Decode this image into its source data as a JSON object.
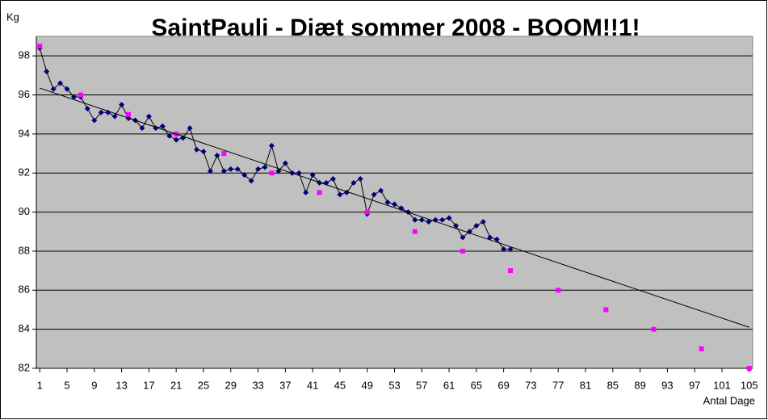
{
  "chart_data": {
    "type": "scatter-line",
    "title": "SaintPauli - Diæt sommer 2008 - BOOM!!1!",
    "y_label": "Kg",
    "x_label": "Antal Dage",
    "xlim": [
      0.5,
      105.5
    ],
    "xticks": [
      1,
      5,
      9,
      13,
      17,
      21,
      25,
      29,
      33,
      37,
      41,
      45,
      49,
      53,
      57,
      61,
      65,
      69,
      73,
      77,
      81,
      85,
      89,
      93,
      97,
      101,
      105
    ],
    "ylim": [
      82,
      99
    ],
    "yticks": [
      82,
      84,
      86,
      88,
      90,
      92,
      94,
      96,
      98
    ],
    "grid": true,
    "series": [
      {
        "color": "#000080",
        "line_color": "#000000",
        "marker": "diamond",
        "x": [
          1,
          2,
          3,
          4,
          5,
          6,
          7,
          8,
          9,
          10,
          11,
          12,
          13,
          14,
          15,
          16,
          17,
          18,
          19,
          20,
          21,
          22,
          23,
          24,
          25,
          26,
          27,
          28,
          29,
          30,
          31,
          32,
          33,
          34,
          35,
          36,
          37,
          38,
          39,
          40,
          41,
          42,
          43,
          44,
          45,
          46,
          47,
          48,
          49,
          50,
          51,
          52,
          53,
          54,
          55,
          56,
          57,
          58,
          59,
          60,
          61,
          62,
          63,
          64,
          65,
          66,
          67,
          68,
          69,
          70
        ],
        "values": [
          98.4,
          97.2,
          96.3,
          96.6,
          96.3,
          95.9,
          95.9,
          95.3,
          94.7,
          95.1,
          95.1,
          94.9,
          95.5,
          94.8,
          94.7,
          94.3,
          94.9,
          94.3,
          94.4,
          93.9,
          93.7,
          93.8,
          94.3,
          93.2,
          93.1,
          92.1,
          92.9,
          92.1,
          92.2,
          92.2,
          91.9,
          91.6,
          92.2,
          92.3,
          93.4,
          92.1,
          92.5,
          92.0,
          92.0,
          91.0,
          91.9,
          91.5,
          91.5,
          91.7,
          90.9,
          91.0,
          91.5,
          91.7,
          89.9,
          90.9,
          91.1,
          90.5,
          90.4,
          90.2,
          90.0,
          89.6,
          89.6,
          89.5,
          89.6,
          89.6,
          89.7,
          89.3,
          88.7,
          89.0,
          89.3,
          89.5,
          88.7,
          88.6,
          88.1,
          88.1
        ]
      },
      {
        "color": "#ff00ff",
        "marker": "square",
        "x": [
          1,
          7,
          14,
          21,
          28,
          35,
          42,
          49,
          56,
          63,
          70,
          77,
          84,
          91,
          98,
          105
        ],
        "values": [
          98.5,
          96,
          95,
          94,
          93,
          92,
          91,
          90,
          89,
          88,
          87,
          86,
          85,
          84,
          83,
          82
        ]
      }
    ],
    "trendline": {
      "color": "#000000",
      "x": [
        1,
        105
      ],
      "y": [
        96.35,
        84.1
      ]
    }
  }
}
